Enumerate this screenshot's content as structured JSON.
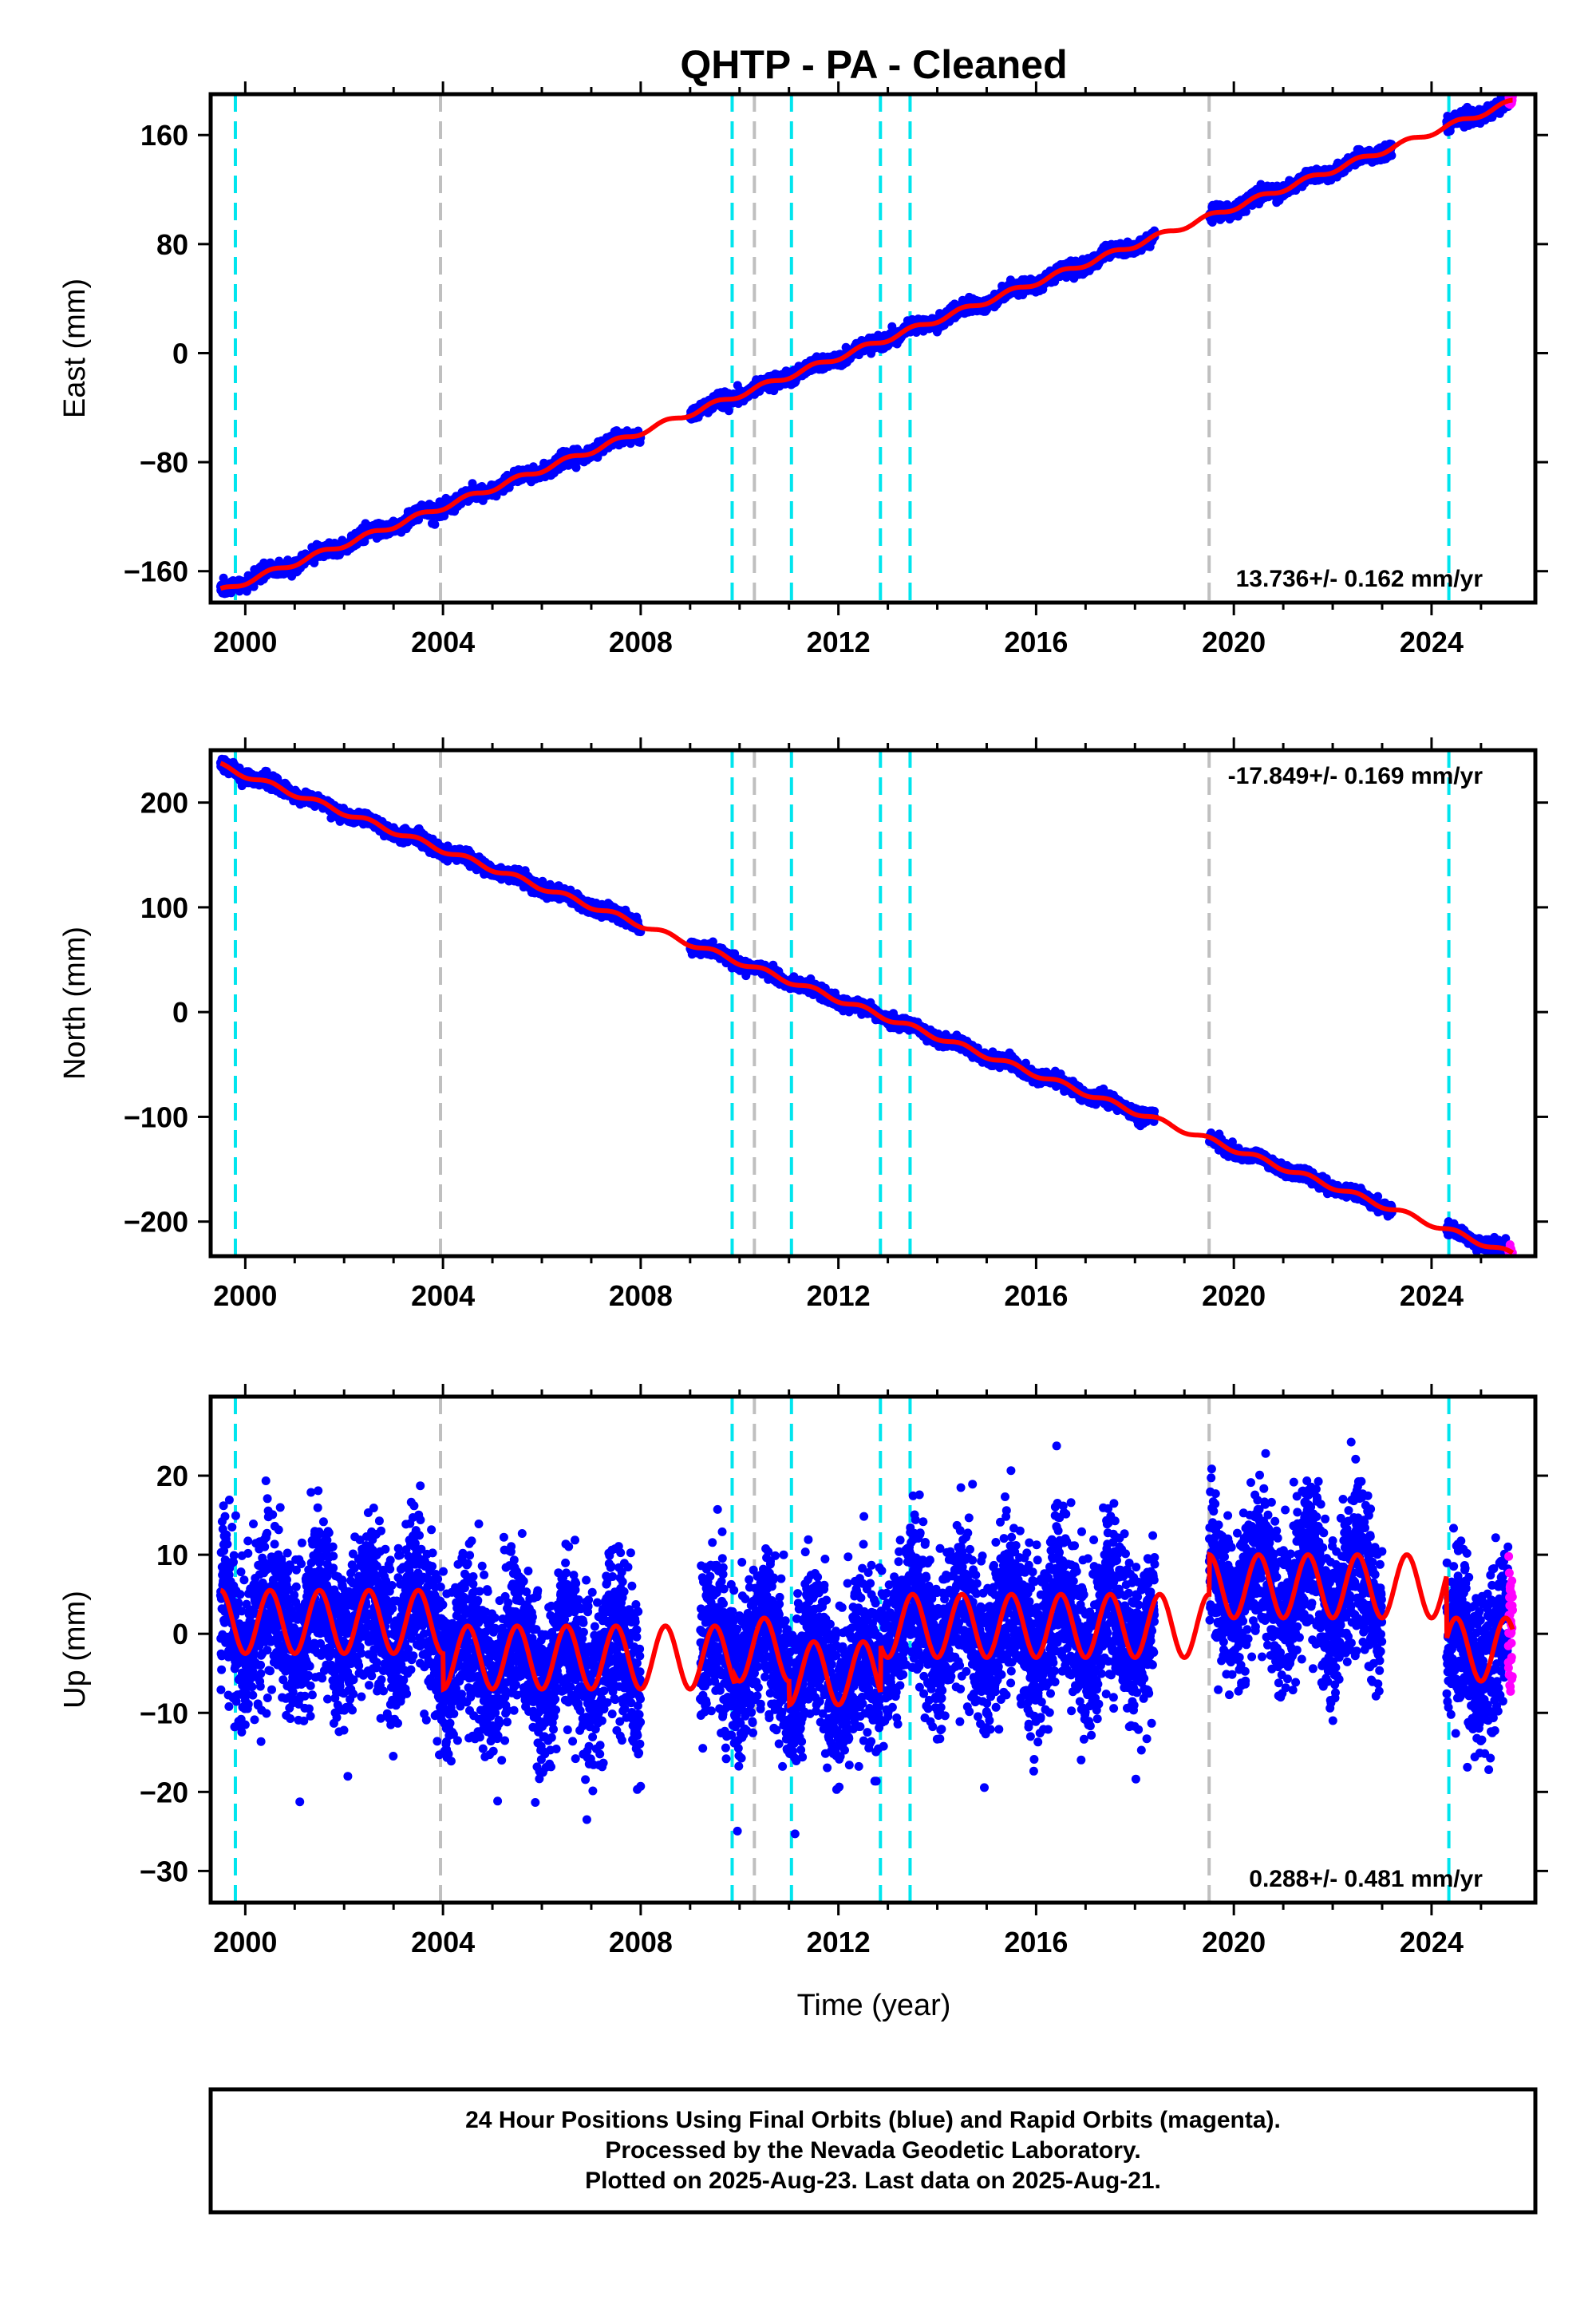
{
  "chart_data": {
    "title": "QHTP  - PA - Cleaned",
    "type": "scatter",
    "xlabel": "Time (year)",
    "xlim": [
      1999.3,
      2026.1
    ],
    "xticks": [
      2000,
      2004,
      2008,
      2012,
      2016,
      2020,
      2024
    ],
    "xtick_labels": [
      "2000",
      "2004",
      "2008",
      "2012",
      "2016",
      "2020",
      "2024"
    ],
    "equipment_changes_cyan": [
      1999.8,
      2009.85,
      2011.05,
      2012.85,
      2013.45,
      2024.35
    ],
    "other_events_gray": [
      2003.95,
      2010.3,
      2019.5
    ],
    "series_colors": {
      "final_orbits": "#0000ff",
      "rapid_orbits": "#ff00ff",
      "model": "#ff0000",
      "equipment_line": "#00e5ee",
      "event_line": "#bfbfbf"
    },
    "panels": [
      {
        "name": "east",
        "ylabel": "East (mm)",
        "ylim": [
          -183,
          190
        ],
        "yticks": [
          -160,
          -80,
          0,
          80,
          160
        ],
        "ytick_labels": [
          "−160",
          "−80",
          "0",
          "80",
          "160"
        ],
        "rate_label": "13.736+/- 0.162 mm/yr",
        "rate_position": "bottom-right",
        "velocity": 13.736,
        "value_at_2012": -3,
        "seasonal_amplitude": 2,
        "noise": 2.5,
        "gaps": [
          [
            2008.0,
            2009.0
          ],
          [
            2018.4,
            2019.5
          ],
          [
            2023.2,
            2024.3
          ]
        ]
      },
      {
        "name": "north",
        "ylabel": "North (mm)",
        "ylim": [
          -233,
          250
        ],
        "yticks": [
          -200,
          -100,
          0,
          100,
          200
        ],
        "ytick_labels": [
          "−200",
          "−100",
          "0",
          "100",
          "200"
        ],
        "rate_label": "-17.849+/- 0.169 mm/yr",
        "rate_position": "top-right",
        "velocity": -17.849,
        "value_at_2012": 12,
        "seasonal_amplitude": 2.5,
        "noise": 3,
        "gaps": [
          [
            2008.0,
            2009.0
          ],
          [
            2018.4,
            2019.5
          ],
          [
            2023.2,
            2024.3
          ]
        ]
      },
      {
        "name": "up",
        "ylabel": "Up (mm)",
        "ylim": [
          -34,
          30
        ],
        "yticks": [
          -30,
          -20,
          -10,
          0,
          10,
          20
        ],
        "ytick_labels": [
          "−30",
          "−20",
          "−10",
          "0",
          "10",
          "20"
        ],
        "rate_label": "0.288+/- 0.481 mm/yr",
        "rate_position": "bottom-right",
        "velocity": 0.288,
        "seasonal_amplitude": 4,
        "noise": 5,
        "gaps": [
          [
            2008.0,
            2009.2
          ],
          [
            2018.4,
            2019.5
          ],
          [
            2023.0,
            2024.3
          ]
        ],
        "offsets": [
          {
            "start": 1999.3,
            "end": 2004.0,
            "mean": 1.5
          },
          {
            "start": 2004.0,
            "end": 2009.9,
            "mean": -3
          },
          {
            "start": 2009.9,
            "end": 2011.0,
            "mean": -2
          },
          {
            "start": 2011.0,
            "end": 2012.85,
            "mean": -5
          },
          {
            "start": 2012.85,
            "end": 2019.5,
            "mean": 1
          },
          {
            "start": 2019.5,
            "end": 2024.3,
            "mean": 6
          },
          {
            "start": 2024.3,
            "end": 2026.1,
            "mean": -2
          }
        ]
      }
    ],
    "data_start": 1999.5,
    "rapid_start": 2025.55,
    "data_end": 2025.64
  },
  "footer": {
    "line1": "24 Hour Positions Using Final Orbits (blue) and Rapid Orbits (magenta).",
    "line2": "Processed by the Nevada Geodetic Laboratory.",
    "line3": "Plotted on 2025-Aug-23. Last data on 2025-Aug-21."
  }
}
